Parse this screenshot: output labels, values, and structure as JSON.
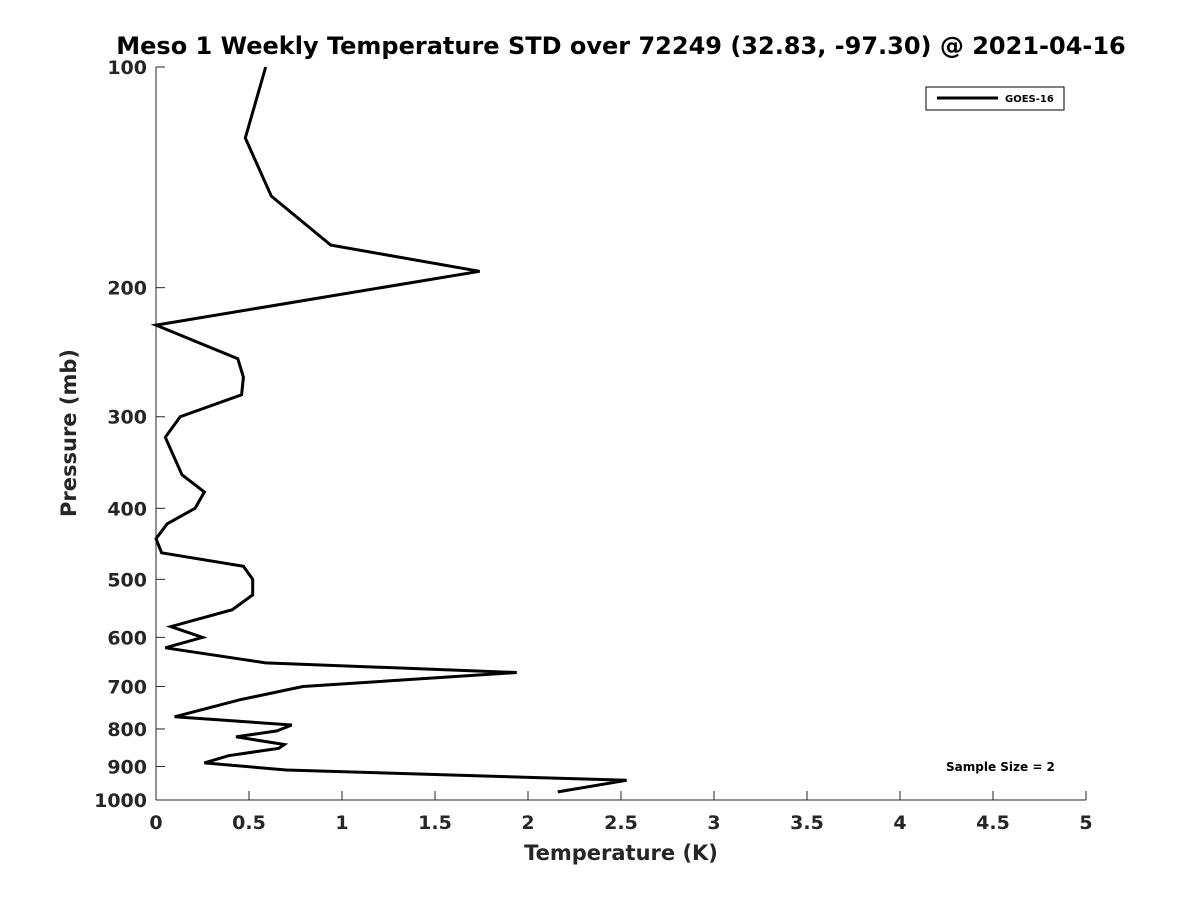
{
  "chart_data": {
    "type": "line",
    "title": "Meso 1 Weekly Temperature STD over 72249 (32.83, -97.30) @ 2021-04-16",
    "xlabel": "Temperature (K)",
    "ylabel": "Pressure (mb)",
    "xlim": [
      0,
      5
    ],
    "ylim": [
      100,
      1000
    ],
    "y_scale": "log",
    "y_reversed": true,
    "x_ticks": [
      "0",
      "0.5",
      "1",
      "1.5",
      "2",
      "2.5",
      "3",
      "3.5",
      "4",
      "4.5",
      "5"
    ],
    "y_ticks": [
      "100",
      "200",
      "300",
      "400",
      "500",
      "600",
      "700",
      "800",
      "900",
      "1000"
    ],
    "grid": false,
    "legend_position": "top-right",
    "series": [
      {
        "name": "GOES-16",
        "color": "#000000",
        "points": [
          {
            "x": 0.59,
            "p": 100
          },
          {
            "x": 0.48,
            "p": 125
          },
          {
            "x": 0.62,
            "p": 150
          },
          {
            "x": 0.94,
            "p": 175
          },
          {
            "x": 1.74,
            "p": 190
          },
          {
            "x": 0.0,
            "p": 225
          },
          {
            "x": 0.44,
            "p": 250
          },
          {
            "x": 0.47,
            "p": 265
          },
          {
            "x": 0.46,
            "p": 280
          },
          {
            "x": 0.13,
            "p": 300
          },
          {
            "x": 0.05,
            "p": 320
          },
          {
            "x": 0.14,
            "p": 360
          },
          {
            "x": 0.26,
            "p": 380
          },
          {
            "x": 0.21,
            "p": 400
          },
          {
            "x": 0.06,
            "p": 420
          },
          {
            "x": 0.0,
            "p": 440
          },
          {
            "x": 0.03,
            "p": 460
          },
          {
            "x": 0.47,
            "p": 480
          },
          {
            "x": 0.52,
            "p": 500
          },
          {
            "x": 0.52,
            "p": 525
          },
          {
            "x": 0.41,
            "p": 550
          },
          {
            "x": 0.08,
            "p": 580
          },
          {
            "x": 0.25,
            "p": 600
          },
          {
            "x": 0.05,
            "p": 620
          },
          {
            "x": 0.59,
            "p": 650
          },
          {
            "x": 1.94,
            "p": 670
          },
          {
            "x": 0.79,
            "p": 700
          },
          {
            "x": 0.45,
            "p": 730
          },
          {
            "x": 0.1,
            "p": 770
          },
          {
            "x": 0.73,
            "p": 790
          },
          {
            "x": 0.65,
            "p": 805
          },
          {
            "x": 0.43,
            "p": 820
          },
          {
            "x": 0.69,
            "p": 840
          },
          {
            "x": 0.66,
            "p": 850
          },
          {
            "x": 0.39,
            "p": 870
          },
          {
            "x": 0.26,
            "p": 890
          },
          {
            "x": 0.7,
            "p": 910
          },
          {
            "x": 2.53,
            "p": 940
          },
          {
            "x": 2.16,
            "p": 975
          }
        ]
      }
    ],
    "annotation": "Sample Size = 2"
  }
}
